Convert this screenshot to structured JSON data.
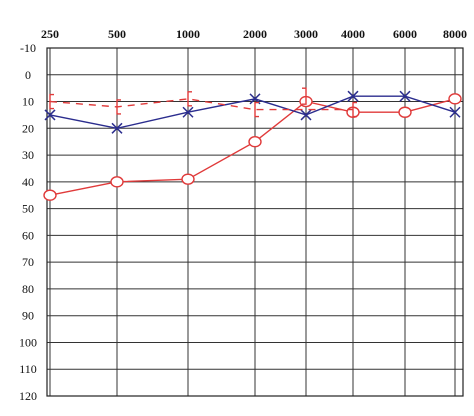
{
  "chart_data": {
    "type": "line",
    "title": "",
    "xlabel": "",
    "ylabel": "",
    "x_scale": "log",
    "y_inverted": true,
    "x": [
      250,
      500,
      1000,
      2000,
      3000,
      4000,
      6000,
      8000
    ],
    "x_tick_labels": [
      "250",
      "500",
      "1000",
      "2000",
      "3000",
      "4000",
      "6000",
      "8000"
    ],
    "y_ticks": [
      -10,
      0,
      10,
      20,
      30,
      40,
      50,
      60,
      70,
      80,
      90,
      100,
      110,
      120
    ],
    "y_tick_labels": [
      "-10",
      "0",
      "10",
      "20",
      "30",
      "40",
      "50",
      "60",
      "70",
      "80",
      "90",
      "100",
      "110",
      "120"
    ],
    "ylim": [
      -10,
      120
    ],
    "grid": true,
    "legend": "none",
    "series": [
      {
        "marker": "o",
        "color": "#e03a3a",
        "style": "solid",
        "points": [
          [
            250,
            45
          ],
          [
            500,
            40
          ],
          [
            1000,
            39
          ],
          [
            2000,
            25
          ],
          [
            3000,
            10
          ],
          [
            4000,
            14
          ],
          [
            6000,
            14
          ],
          [
            8000,
            9
          ]
        ]
      },
      {
        "marker": "x",
        "color": "#2b2d8e",
        "style": "solid",
        "points": [
          [
            250,
            15
          ],
          [
            500,
            20
          ],
          [
            1000,
            14
          ],
          [
            2000,
            9
          ],
          [
            3000,
            15
          ],
          [
            4000,
            8
          ],
          [
            6000,
            8
          ],
          [
            8000,
            14
          ]
        ]
      },
      {
        "marker": "[",
        "color": "#e03a3a",
        "style": "dashed",
        "points": [
          [
            250,
            10
          ],
          [
            500,
            12
          ],
          [
            1000,
            9
          ],
          [
            2000,
            13
          ],
          [
            4000,
            13
          ]
        ]
      },
      {
        "marker": "]",
        "color": "#e03a3a",
        "style": "none",
        "points": [
          [
            3000,
            8
          ]
        ]
      }
    ]
  }
}
